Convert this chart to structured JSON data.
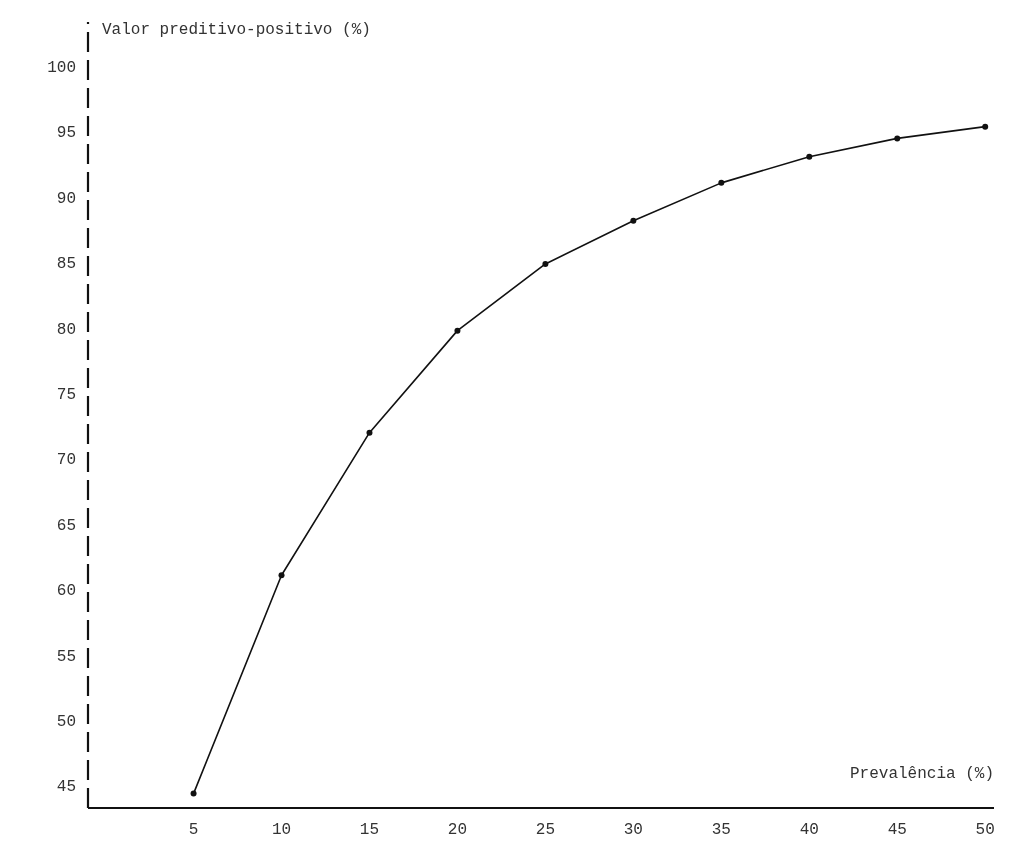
{
  "chart_data": {
    "type": "line",
    "xlabel": "Prevalência (%)",
    "ylabel": "Valor preditivo-positivo (%)",
    "x": [
      5,
      10,
      15,
      20,
      25,
      30,
      35,
      40,
      45,
      50
    ],
    "series": [
      {
        "color": "#111111",
        "values": [
          44.5,
          61.2,
          72.1,
          79.9,
          85,
          88.3,
          91.2,
          93.2,
          94.6,
          95.5
        ]
      }
    ],
    "xlim": [
      -1,
      50.5
    ],
    "xticks": [
      5,
      10,
      15,
      20,
      25,
      30,
      35,
      40,
      45,
      50
    ],
    "ylim": [
      43.4,
      103.5
    ],
    "yticks": [
      45,
      50,
      55,
      60,
      65,
      70,
      75,
      80,
      85,
      90,
      95,
      100
    ],
    "marker": "circle",
    "line_style": "solid"
  }
}
